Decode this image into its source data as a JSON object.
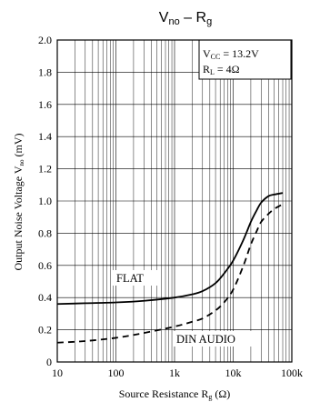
{
  "chart_data": {
    "type": "line",
    "title": {
      "base": "V",
      "sub": "no",
      "rest": " – R",
      "sub2": "g"
    },
    "xlabel": {
      "base": "Source Resistance R",
      "sub": "g",
      "rest": " (Ω)"
    },
    "ylabel": {
      "base": "Output Noise Voltage V",
      "sub": "no",
      "rest": " (mV)"
    },
    "x_scale": "log",
    "xlim": [
      10,
      100000
    ],
    "ylim": [
      0,
      2.0
    ],
    "x_ticks": [
      {
        "value": 10,
        "label": "10"
      },
      {
        "value": 100,
        "label": "100"
      },
      {
        "value": 1000,
        "label": "1k"
      },
      {
        "value": 10000,
        "label": "10k"
      },
      {
        "value": 100000,
        "label": "100k"
      }
    ],
    "y_ticks": [
      {
        "value": 0,
        "label": "0"
      },
      {
        "value": 0.2,
        "label": "0.2"
      },
      {
        "value": 0.4,
        "label": "0.4"
      },
      {
        "value": 0.6,
        "label": "0.6"
      },
      {
        "value": 0.8,
        "label": "0.8"
      },
      {
        "value": 1.0,
        "label": "1.0"
      },
      {
        "value": 1.2,
        "label": "1.2"
      },
      {
        "value": 1.4,
        "label": "1.4"
      },
      {
        "value": 1.6,
        "label": "1.6"
      },
      {
        "value": 1.8,
        "label": "1.8"
      },
      {
        "value": 2.0,
        "label": "2.0"
      }
    ],
    "grid": true,
    "legend": {
      "placement": "top-right",
      "lines": [
        {
          "base": "V",
          "sub": "CC",
          "rest": " = 13.2V"
        },
        {
          "base": "R",
          "sub": "L",
          "rest": " = 4Ω"
        }
      ]
    },
    "series": [
      {
        "name": "FLAT",
        "style": "solid",
        "x": [
          10,
          30,
          100,
          300,
          1000,
          2000,
          3000,
          5000,
          7000,
          10000,
          15000,
          20000,
          25000,
          30000,
          40000,
          50000,
          70000
        ],
        "y": [
          0.36,
          0.365,
          0.37,
          0.38,
          0.4,
          0.42,
          0.44,
          0.49,
          0.55,
          0.63,
          0.76,
          0.87,
          0.94,
          0.99,
          1.03,
          1.04,
          1.05
        ]
      },
      {
        "name": "DIN AUDIO",
        "style": "dashed",
        "x": [
          10,
          30,
          100,
          300,
          1000,
          2000,
          3000,
          5000,
          7000,
          10000,
          15000,
          20000,
          25000,
          30000,
          40000,
          50000,
          70000
        ],
        "y": [
          0.12,
          0.13,
          0.15,
          0.18,
          0.22,
          0.25,
          0.27,
          0.32,
          0.37,
          0.45,
          0.6,
          0.73,
          0.81,
          0.87,
          0.92,
          0.95,
          0.98
        ]
      }
    ]
  }
}
